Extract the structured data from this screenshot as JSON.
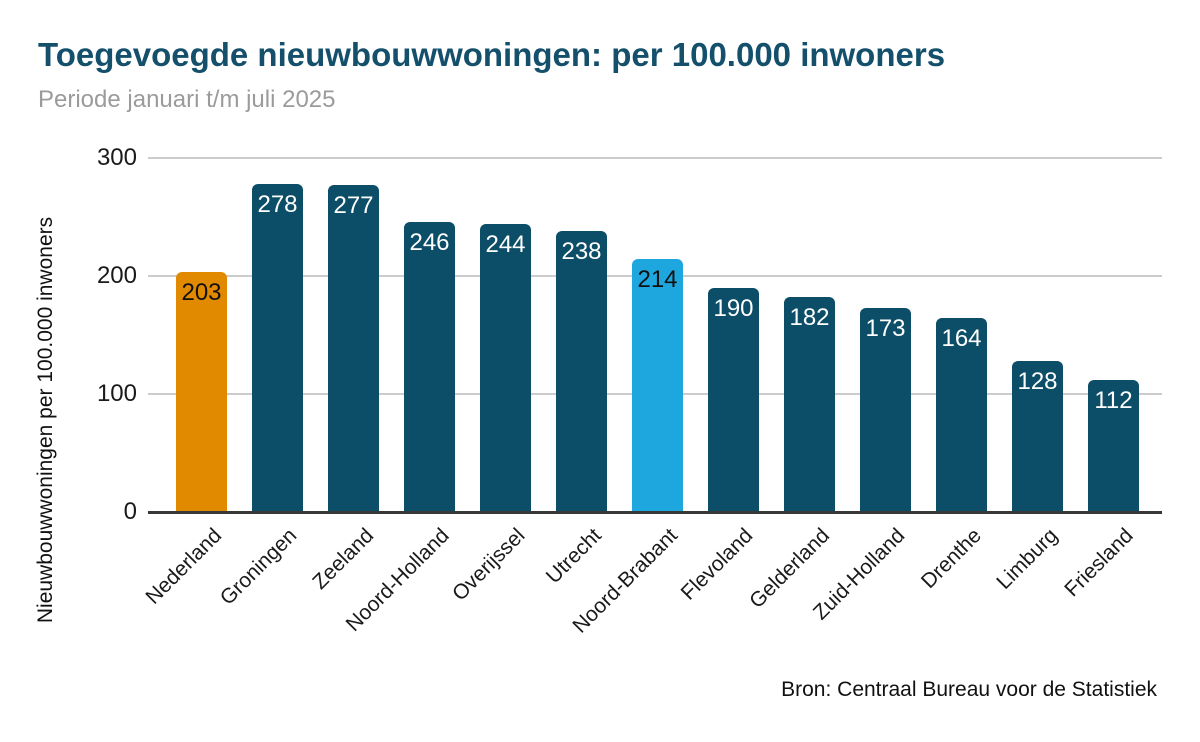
{
  "header": {
    "title": "Toegevoegde nieuwbouwwoningen: per 100.000 inwoners",
    "subtitle": "Periode januari t/m juli 2025"
  },
  "footer": {
    "source": "Bron: Centraal Bureau voor de Statistiek"
  },
  "colors": {
    "title": "#14506B",
    "subtitle": "#9B9B9B",
    "gridline": "#CCCCCC",
    "axis_line": "#383838",
    "text": "#1A1A1A",
    "background": "#FFFFFF",
    "bar_default": "#0C4D67",
    "bar_nederland_highlight": "#E18A00",
    "bar_noord_brabant_highlight": "#1EA7DE"
  },
  "chart_data": {
    "type": "bar",
    "title": "Toegevoegde nieuwbouwwoningen: per 100.000 inwoners",
    "subtitle": "Periode januari t/m juli 2025",
    "xlabel": "",
    "ylabel": "Nieuwbouwwoningen per 100.000 inwoners",
    "ylim": [
      0,
      300
    ],
    "y_ticks": [
      0,
      100,
      200,
      300
    ],
    "grid": "horizontal",
    "legend_position": "none",
    "value_labels": "inside-top",
    "x_tick_label_rotation": 45,
    "categories": [
      "Nederland",
      "Groningen",
      "Zeeland",
      "Noord-Holland",
      "Overijssel",
      "Utrecht",
      "Noord-Brabant",
      "Flevoland",
      "Gelderland",
      "Zuid-Holland",
      "Drenthe",
      "Limburg",
      "Friesland"
    ],
    "values": [
      203,
      278,
      277,
      246,
      244,
      238,
      214,
      190,
      182,
      173,
      164,
      128,
      112
    ],
    "bar_colors": [
      "#E18A00",
      "#0C4D67",
      "#0C4D67",
      "#0C4D67",
      "#0C4D67",
      "#0C4D67",
      "#1EA7DE",
      "#0C4D67",
      "#0C4D67",
      "#0C4D67",
      "#0C4D67",
      "#0C4D67",
      "#0C4D67"
    ],
    "value_label_colors": [
      "#111111",
      "#FFFFFF",
      "#FFFFFF",
      "#FFFFFF",
      "#FFFFFF",
      "#FFFFFF",
      "#111111",
      "#FFFFFF",
      "#FFFFFF",
      "#FFFFFF",
      "#FFFFFF",
      "#FFFFFF",
      "#FFFFFF"
    ],
    "source": "Bron: Centraal Bureau voor de Statistiek"
  }
}
